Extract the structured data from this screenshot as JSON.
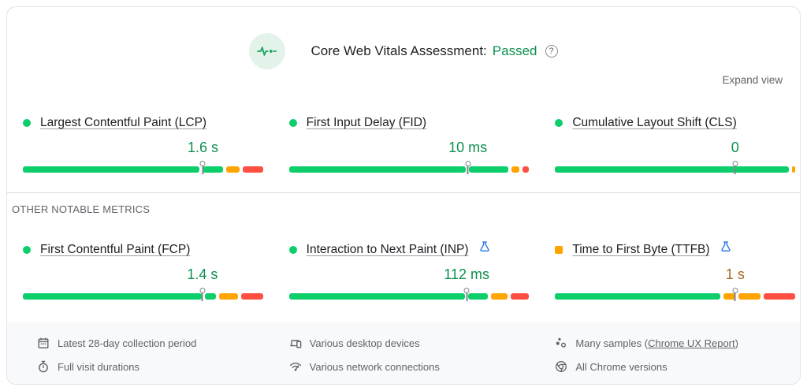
{
  "header": {
    "title": "Core Web Vitals Assessment:",
    "status": "Passed",
    "help_icon": "?",
    "expand_view": "Expand view"
  },
  "section_label": "OTHER NOTABLE METRICS",
  "colors": {
    "good": "#0cce6b",
    "needs_improvement": "#ffa400",
    "poor": "#ff4e42",
    "good_text": "#0d904f",
    "ni_text": "#a8661f",
    "gray_text": "#5f6368",
    "flask_blue": "#1a73e8"
  },
  "core_metrics": [
    {
      "name": "Largest Contentful Paint (LCP)",
      "value": "1.6 s",
      "value_state": "good",
      "bullet": "circle",
      "bullet_state": "good",
      "experimental": false,
      "marker_pct": 75,
      "segments": [
        {
          "state": "good",
          "pct": 74
        },
        {
          "state": "good",
          "pct": 8.5
        },
        {
          "state": "needs_improvement",
          "pct": 5.7
        },
        {
          "state": "poor",
          "pct": 8.3
        }
      ]
    },
    {
      "name": "First Input Delay (FID)",
      "value": "10 ms",
      "value_state": "good",
      "bullet": "circle",
      "bullet_state": "good",
      "experimental": false,
      "marker_pct": 74.5,
      "segments": [
        {
          "state": "good",
          "pct": 74
        },
        {
          "state": "good",
          "pct": 16.5
        },
        {
          "state": "needs_improvement",
          "pct": 3.4
        },
        {
          "state": "poor",
          "pct": 2.7
        }
      ]
    },
    {
      "name": "Cumulative Layout Shift (CLS)",
      "value": "0",
      "value_state": "good",
      "bullet": "circle",
      "bullet_state": "good",
      "experimental": false,
      "marker_pct": 75,
      "segments": [
        {
          "state": "good",
          "pct": 98.6
        },
        {
          "state": "needs_improvement",
          "pct": 1.4
        }
      ]
    }
  ],
  "other_metrics": [
    {
      "name": "First Contentful Paint (FCP)",
      "value": "1.4 s",
      "value_state": "good",
      "bullet": "circle",
      "bullet_state": "good",
      "experimental": false,
      "marker_pct": 74.8,
      "segments": [
        {
          "state": "good",
          "pct": 74.5
        },
        {
          "state": "good",
          "pct": 4.6
        },
        {
          "state": "needs_improvement",
          "pct": 8
        },
        {
          "state": "poor",
          "pct": 9
        }
      ]
    },
    {
      "name": "Interaction to Next Paint (INP)",
      "value": "112 ms",
      "value_state": "good",
      "bullet": "circle",
      "bullet_state": "good",
      "experimental": true,
      "marker_pct": 74,
      "segments": [
        {
          "state": "good",
          "pct": 73.5
        },
        {
          "state": "good",
          "pct": 8.3
        },
        {
          "state": "needs_improvement",
          "pct": 6.7
        },
        {
          "state": "poor",
          "pct": 7.8
        }
      ]
    },
    {
      "name": "Time to First Byte (TTFB)",
      "value": "1 s",
      "value_state": "needs_improvement",
      "bullet": "square",
      "bullet_state": "needs_improvement",
      "experimental": true,
      "marker_pct": 75,
      "segments": [
        {
          "state": "good",
          "pct": 68
        },
        {
          "state": "needs_improvement",
          "pct": 5
        },
        {
          "state": "needs_improvement",
          "pct": 9
        },
        {
          "state": "poor",
          "pct": 13
        }
      ]
    }
  ],
  "footer": {
    "columns": [
      {
        "items": [
          {
            "icon": "calendar",
            "text": "Latest 28-day collection period"
          },
          {
            "icon": "stopwatch",
            "text": "Full visit durations"
          }
        ]
      },
      {
        "items": [
          {
            "icon": "devices",
            "text": "Various desktop devices"
          },
          {
            "icon": "network",
            "text": "Various network connections"
          }
        ]
      },
      {
        "items": [
          {
            "icon": "samples",
            "text": "Many samples (",
            "link": "Chrome UX Report",
            "text_after": ")"
          },
          {
            "icon": "chrome",
            "text": "All Chrome versions"
          }
        ]
      }
    ]
  }
}
